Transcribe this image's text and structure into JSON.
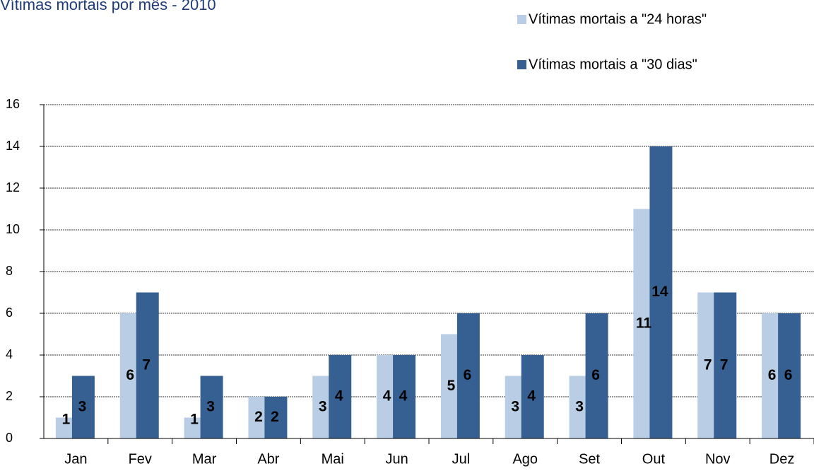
{
  "chart_data": {
    "type": "bar",
    "title": "Vítimas mortais por mês - 2010",
    "categories": [
      "Jan",
      "Fev",
      "Mar",
      "Abr",
      "Mai",
      "Jun",
      "Jul",
      "Ago",
      "Set",
      "Out",
      "Nov",
      "Dez"
    ],
    "series": [
      {
        "name": "Vítimas mortais a \"24 horas\"",
        "color": "#b9cde5",
        "values": [
          1,
          6,
          1,
          2,
          3,
          4,
          5,
          3,
          3,
          11,
          7,
          6
        ]
      },
      {
        "name": "Vítimas mortais a \"30 dias\"",
        "color": "#376092",
        "values": [
          3,
          7,
          3,
          2,
          4,
          4,
          6,
          4,
          6,
          14,
          7,
          6
        ]
      }
    ],
    "ylim": [
      0,
      16
    ],
    "yticks": [
      0,
      2,
      4,
      6,
      8,
      10,
      12,
      14,
      16
    ],
    "grid": true,
    "legend": "top-right"
  }
}
